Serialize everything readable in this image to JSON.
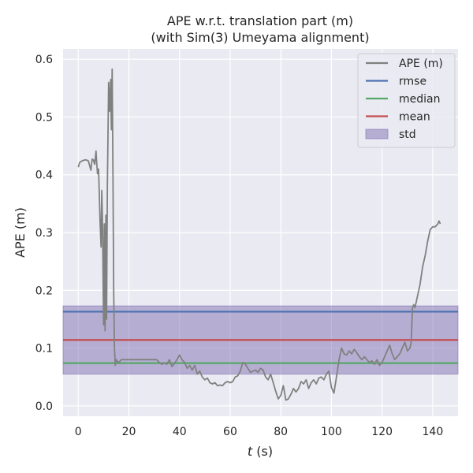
{
  "chart_data": {
    "type": "line",
    "title_line1": "APE w.r.t. translation part (m)",
    "title_line2": "(with Sim(3) Umeyama alignment)",
    "xlabel_var": "t",
    "xlabel_unit": " (s)",
    "ylabel": "APE (m)",
    "xlim": [
      -6,
      150
    ],
    "ylim": [
      -0.018,
      0.618
    ],
    "xticks": [
      0,
      20,
      40,
      60,
      80,
      100,
      120,
      140
    ],
    "yticks": [
      0.0,
      0.1,
      0.2,
      0.3,
      0.4,
      0.5,
      0.6
    ],
    "ytick_labels": [
      "0.0",
      "0.1",
      "0.2",
      "0.3",
      "0.4",
      "0.5",
      "0.6"
    ],
    "grid": true,
    "legend_position": "top-right",
    "colors": {
      "background": "#eaeaf2",
      "grid": "#ffffff",
      "ape": "#808080",
      "rmse": "#4c72b0",
      "median": "#55a868",
      "mean": "#c44e52",
      "std_fill": "#8172b2"
    },
    "stats": {
      "rmse": 0.163,
      "median": 0.074,
      "mean": 0.114,
      "std_low": 0.055,
      "std_high": 0.173
    },
    "legend": [
      {
        "label": "APE (m)",
        "kind": "line",
        "color": "#808080"
      },
      {
        "label": "rmse",
        "kind": "line",
        "color": "#4c72b0"
      },
      {
        "label": "median",
        "kind": "line",
        "color": "#55a868"
      },
      {
        "label": "mean",
        "kind": "line",
        "color": "#c44e52"
      },
      {
        "label": "std",
        "kind": "patch",
        "color": "#8172b2"
      }
    ],
    "series": [
      {
        "name": "APE (m)",
        "x": [
          0,
          0.5,
          1,
          2,
          3,
          4,
          5,
          5.5,
          6,
          6.5,
          7,
          7.3,
          7.6,
          8,
          8.3,
          8.6,
          9,
          9.3,
          9.6,
          10,
          10.3,
          10.6,
          10.9,
          11.2,
          11.5,
          12,
          12.4,
          12.8,
          13.1,
          13.4,
          13.7,
          14,
          14.3,
          14.6,
          15,
          15.5,
          16,
          17,
          18,
          20,
          25,
          31,
          32,
          33,
          34,
          35,
          36,
          37,
          38,
          39,
          40,
          41,
          42,
          43,
          44,
          45,
          46,
          47,
          48,
          49,
          50,
          51,
          52,
          53,
          54,
          55,
          56,
          57,
          58,
          59,
          60,
          61,
          62,
          63,
          64,
          65,
          66,
          67,
          68,
          69,
          70,
          71,
          72,
          73,
          74,
          75,
          76,
          77,
          78,
          79,
          80,
          81,
          82,
          83,
          84,
          85,
          86,
          87,
          88,
          89,
          90,
          91,
          92,
          93,
          94,
          95,
          96,
          97,
          98,
          99,
          100,
          101,
          102,
          103,
          104,
          105,
          106,
          107,
          108,
          109,
          110,
          111,
          112,
          113,
          114,
          115,
          116,
          117,
          118,
          119,
          120,
          121,
          122,
          123,
          124,
          125,
          126,
          127,
          128,
          129,
          130,
          131,
          131.5,
          132,
          132.5,
          133,
          134,
          135,
          136,
          137,
          138,
          139,
          140,
          141,
          142,
          142.5,
          143
        ],
        "y": [
          0.413,
          0.421,
          0.423,
          0.425,
          0.426,
          0.424,
          0.408,
          0.427,
          0.426,
          0.418,
          0.441,
          0.42,
          0.402,
          0.41,
          0.37,
          0.32,
          0.275,
          0.373,
          0.31,
          0.14,
          0.315,
          0.13,
          0.33,
          0.15,
          0.38,
          0.56,
          0.51,
          0.565,
          0.478,
          0.583,
          0.4,
          0.2,
          0.1,
          0.07,
          0.08,
          0.077,
          0.075,
          0.08,
          0.08,
          0.08,
          0.08,
          0.08,
          0.075,
          0.072,
          0.074,
          0.072,
          0.08,
          0.068,
          0.073,
          0.08,
          0.088,
          0.08,
          0.075,
          0.065,
          0.07,
          0.062,
          0.07,
          0.055,
          0.06,
          0.05,
          0.045,
          0.048,
          0.04,
          0.038,
          0.04,
          0.035,
          0.036,
          0.035,
          0.04,
          0.042,
          0.04,
          0.042,
          0.05,
          0.052,
          0.06,
          0.075,
          0.072,
          0.065,
          0.058,
          0.06,
          0.062,
          0.058,
          0.065,
          0.062,
          0.05,
          0.045,
          0.055,
          0.04,
          0.025,
          0.012,
          0.018,
          0.035,
          0.01,
          0.012,
          0.02,
          0.03,
          0.024,
          0.03,
          0.042,
          0.038,
          0.045,
          0.03,
          0.04,
          0.045,
          0.038,
          0.048,
          0.05,
          0.045,
          0.055,
          0.06,
          0.032,
          0.022,
          0.05,
          0.08,
          0.1,
          0.09,
          0.088,
          0.095,
          0.09,
          0.098,
          0.092,
          0.085,
          0.08,
          0.085,
          0.08,
          0.075,
          0.078,
          0.072,
          0.08,
          0.07,
          0.075,
          0.085,
          0.095,
          0.105,
          0.09,
          0.08,
          0.085,
          0.09,
          0.1,
          0.11,
          0.095,
          0.1,
          0.11,
          0.17,
          0.175,
          0.17,
          0.19,
          0.21,
          0.24,
          0.26,
          0.285,
          0.305,
          0.31,
          0.31,
          0.315,
          0.32,
          0.315
        ]
      }
    ]
  }
}
